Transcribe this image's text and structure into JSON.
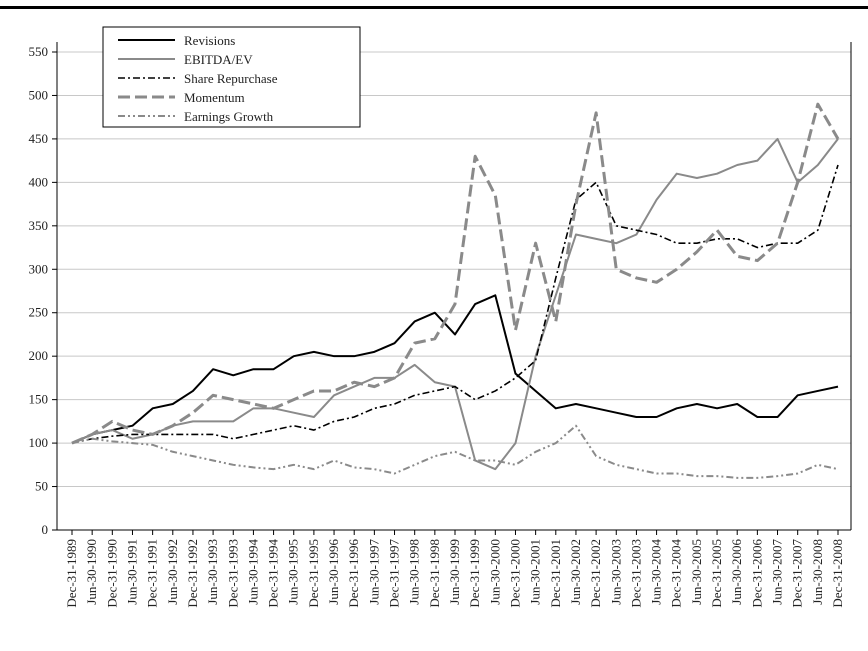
{
  "chart_data": {
    "type": "line",
    "categories": [
      "Dec-31-1989",
      "Jun-30-1990",
      "Dec-31-1990",
      "Jun-30-1991",
      "Dec-31-1991",
      "Jun-30-1992",
      "Dec-31-1992",
      "Jun-30-1993",
      "Dec-31-1993",
      "Jun-30-1994",
      "Dec-31-1994",
      "Jun-30-1995",
      "Dec-31-1995",
      "Jun-30-1996",
      "Dec-31-1996",
      "Jun-30-1997",
      "Dec-31-1997",
      "Jun-30-1998",
      "Dec-31-1998",
      "Jun-30-1999",
      "Dec-31-1999",
      "Jun-30-2000",
      "Dec-31-2000",
      "Jun-30-2001",
      "Dec-31-2001",
      "Jun-30-2002",
      "Dec-31-2002",
      "Jun-30-2003",
      "Dec-31-2003",
      "Jun-30-2004",
      "Dec-31-2004",
      "Jun-30-2005",
      "Dec-31-2005",
      "Jun-30-2006",
      "Dec-31-2006",
      "Jun-30-2007",
      "Dec-31-2007",
      "Jun-30-2008",
      "Dec-31-2008"
    ],
    "series": [
      {
        "name": "Revisions",
        "color": "#000000",
        "width": 2,
        "dash": "none",
        "values": [
          100,
          110,
          115,
          120,
          140,
          145,
          160,
          185,
          178,
          185,
          185,
          200,
          205,
          200,
          200,
          205,
          215,
          240,
          250,
          225,
          260,
          270,
          180,
          160,
          140,
          145,
          140,
          135,
          130,
          130,
          140,
          145,
          140,
          145,
          130,
          130,
          155,
          160,
          165
        ]
      },
      {
        "name": "EBITDA/EV",
        "color": "#8a8a8a",
        "width": 2,
        "dash": "none",
        "values": [
          100,
          110,
          115,
          105,
          110,
          120,
          125,
          125,
          125,
          140,
          140,
          135,
          130,
          155,
          165,
          175,
          175,
          190,
          170,
          165,
          80,
          70,
          100,
          200,
          270,
          340,
          335,
          330,
          340,
          380,
          410,
          405,
          410,
          420,
          425,
          450,
          400,
          420,
          450
        ]
      },
      {
        "name": "Share Repurchase",
        "color": "#000000",
        "width": 1.6,
        "dash": "7,3,2,3",
        "values": [
          100,
          105,
          108,
          110,
          110,
          110,
          110,
          110,
          105,
          110,
          115,
          120,
          115,
          125,
          130,
          140,
          145,
          155,
          160,
          165,
          150,
          160,
          175,
          195,
          290,
          380,
          400,
          350,
          345,
          340,
          330,
          330,
          335,
          335,
          325,
          330,
          330,
          345,
          420
        ]
      },
      {
        "name": "Momentum",
        "color": "#8a8a8a",
        "width": 3,
        "dash": "12,5",
        "values": [
          100,
          110,
          125,
          115,
          110,
          120,
          135,
          155,
          150,
          145,
          140,
          150,
          160,
          160,
          170,
          165,
          175,
          215,
          220,
          260,
          430,
          385,
          230,
          330,
          240,
          375,
          480,
          300,
          290,
          285,
          300,
          320,
          345,
          315,
          310,
          330,
          400,
          490,
          450
        ]
      },
      {
        "name": "Earnings Growth",
        "color": "#8a8a8a",
        "width": 2,
        "dash": "7,3,2,3,2,3",
        "values": [
          100,
          105,
          102,
          100,
          98,
          90,
          85,
          80,
          75,
          72,
          70,
          75,
          70,
          80,
          72,
          70,
          65,
          75,
          85,
          90,
          80,
          80,
          75,
          90,
          100,
          120,
          85,
          75,
          70,
          65,
          65,
          62,
          62,
          60,
          60,
          62,
          65,
          75,
          70
        ]
      }
    ],
    "ylim": [
      0,
      550
    ],
    "yticks": [
      0,
      50,
      100,
      150,
      200,
      250,
      300,
      350,
      400,
      450,
      500,
      550
    ],
    "grid": true
  }
}
